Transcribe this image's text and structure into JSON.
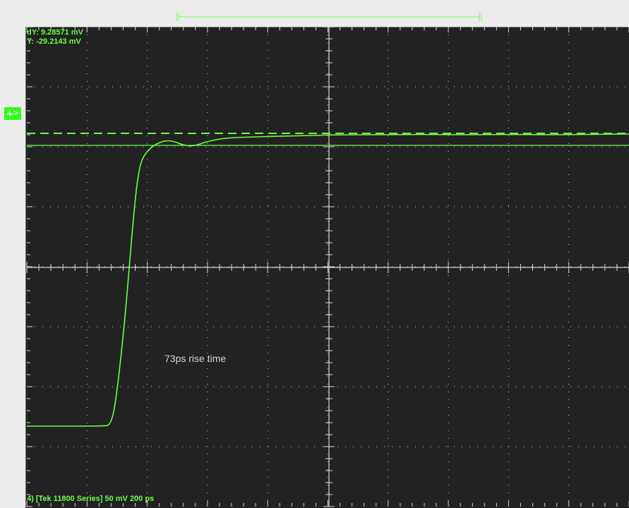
{
  "readouts": {
    "dY": "dY: 9.28571 mV",
    "Y": "Y: -29.2143 mV"
  },
  "channel_marker": "4->",
  "annotation": "73ps rise time",
  "status_bar": "4) [Tek 11800 Series] 50 mV 200 ps",
  "colors": {
    "trace": "#6cff47",
    "graticule_background": "#222222",
    "grid": "#d8d8d8",
    "annotation": "#d7d7d7"
  },
  "grid": {
    "horizontal_divisions": 10,
    "vertical_divisions": 8,
    "minor_ticks_per_division": 5
  },
  "time_window": {
    "start_marker": "|[",
    "end_marker": "]|"
  },
  "cursors": {
    "upper": "dashed",
    "lower": "solid"
  }
}
